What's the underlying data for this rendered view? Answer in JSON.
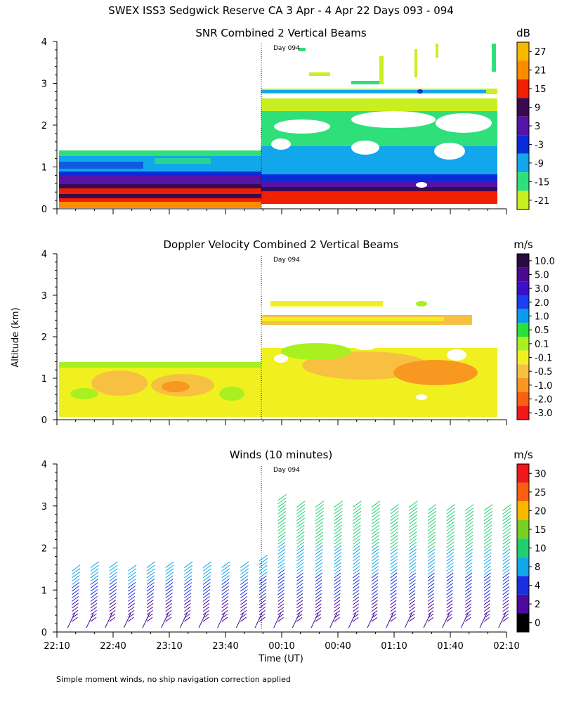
{
  "figure": {
    "title": "SWEX ISS3 Sedgwick Reserve CA   3 Apr -  4 Apr 22 Days 093 - 094",
    "ylabel": "Altitude (km)",
    "xlabel": "Time (UT)",
    "footer": "Simple moment winds, no ship navigation correction applied",
    "day_marker": "Day 094",
    "x_ticks": [
      "22:10",
      "22:40",
      "23:10",
      "23:40",
      "00:10",
      "00:40",
      "01:10",
      "01:40",
      "02:10"
    ]
  },
  "chart_data": [
    {
      "type": "heatmap",
      "title": "SNR Combined 2 Vertical Beams",
      "units": "dB",
      "ylabel": "Altitude (km)",
      "y_ticks": [
        "0",
        "1",
        "2",
        "3",
        "4"
      ],
      "ylim": [
        0,
        4
      ],
      "xlim_minutes": [
        0,
        240
      ],
      "day_boundary_minutes": 110,
      "colorbar": {
        "labels": [
          "27",
          "21",
          "15",
          "9",
          "3",
          "-3",
          "-9",
          "-15",
          "-21"
        ],
        "colors": [
          "#f7b800",
          "#fb8c00",
          "#ef1f00",
          "#3a0a4e",
          "#5514a8",
          "#0a2bd8",
          "#12a6ea",
          "#2fe07a",
          "#c8f020"
        ]
      },
      "layers_km": [
        {
          "bottom": 0.1,
          "top": 0.25,
          "value_db": 21
        },
        {
          "bottom": 0.25,
          "top": 0.45,
          "value_db": 15
        },
        {
          "bottom": 0.45,
          "top": 0.75,
          "value_db": 3
        },
        {
          "bottom": 0.75,
          "top": 1.05,
          "value_db": -9
        },
        {
          "bottom": 1.05,
          "top": 1.4,
          "value_db": -15
        }
      ]
    },
    {
      "type": "heatmap",
      "title": "Doppler Velocity Combined 2 Vertical Beams",
      "units": "m/s",
      "ylabel": "Altitude (km)",
      "y_ticks": [
        "0",
        "1",
        "2",
        "3",
        "4"
      ],
      "ylim": [
        0,
        4
      ],
      "xlim_minutes": [
        0,
        240
      ],
      "day_boundary_minutes": 110,
      "colorbar": {
        "labels": [
          "10.0",
          "5.0",
          "3.0",
          "2.0",
          "1.0",
          "0.5",
          "0.1",
          "-0.1",
          "-0.5",
          "-1.0",
          "-2.0",
          "-3.0"
        ],
        "colors": [
          "#2a0a3e",
          "#4a0a8e",
          "#3a10c8",
          "#1a40f0",
          "#0a9aee",
          "#2ae03a",
          "#a8f020",
          "#f0f020",
          "#f8c040",
          "#f89820",
          "#f86010",
          "#f01818"
        ]
      },
      "dominant_values_ms": [
        -0.1,
        0.1,
        -0.5,
        -1.0
      ]
    },
    {
      "type": "scatter",
      "title": "Winds (10 minutes)",
      "units": "m/s",
      "ylabel": "Altitude (km)",
      "y_ticks": [
        "0",
        "1",
        "2",
        "3",
        "4"
      ],
      "ylim": [
        0,
        4
      ],
      "xlim_minutes": [
        0,
        240
      ],
      "day_boundary_minutes": 110,
      "colorbar": {
        "labels": [
          "30",
          "25",
          "20",
          "15",
          "10",
          "8",
          "4",
          "2",
          "0"
        ],
        "colors": [
          "#f01818",
          "#f86010",
          "#f8b800",
          "#7ad020",
          "#20d070",
          "#12a6ea",
          "#1a30e0",
          "#4a0a9e",
          "#000000"
        ]
      },
      "profile_times_minutes": [
        8,
        18,
        28,
        38,
        48,
        58,
        68,
        78,
        88,
        98,
        108,
        118,
        128,
        138,
        148,
        158,
        168,
        178,
        188,
        198,
        208,
        218,
        228,
        238
      ],
      "profile_top_km": [
        1.5,
        1.6,
        1.6,
        1.5,
        1.6,
        1.6,
        1.6,
        1.6,
        1.6,
        1.6,
        1.7,
        3.2,
        3.0,
        3.0,
        3.0,
        3.0,
        3.0,
        2.9,
        3.0,
        2.9,
        2.9,
        2.9,
        2.9,
        2.9
      ]
    }
  ]
}
